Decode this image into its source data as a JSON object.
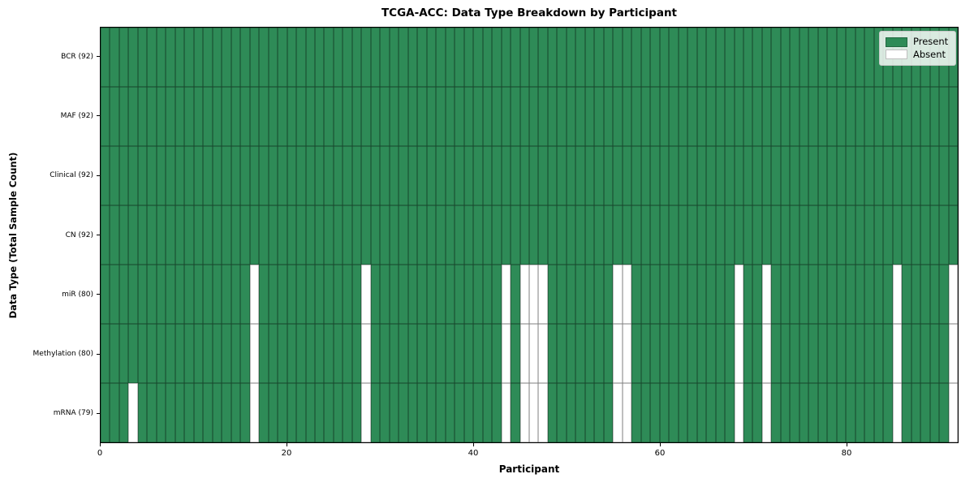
{
  "chart_data": {
    "type": "heatmap",
    "title": "TCGA-ACC: Data Type Breakdown by Participant",
    "xlabel": "Participant",
    "ylabel": "Data Type (Total Sample Count)",
    "x_axis": {
      "range": [
        0,
        92
      ],
      "ticks": [
        0,
        20,
        40,
        60,
        80
      ]
    },
    "n_participants": 92,
    "grid_on": true,
    "colors": {
      "present": "#2e8b57",
      "absent": "#ffffff",
      "cell_grid_line": "rgba(0,0,0,0.5)",
      "spine": "#000000"
    },
    "legend": {
      "position": "upper right",
      "entries": [
        {
          "label": "Present",
          "color": "#2e8b57"
        },
        {
          "label": "Absent",
          "color": "#ffffff"
        }
      ]
    },
    "rows": [
      {
        "label": "BCR (92)",
        "data_type": "BCR",
        "present_count": 92,
        "absent_participants": []
      },
      {
        "label": "MAF (92)",
        "data_type": "MAF",
        "present_count": 92,
        "absent_participants": []
      },
      {
        "label": "Clinical (92)",
        "data_type": "Clinical",
        "present_count": 92,
        "absent_participants": []
      },
      {
        "label": "CN (92)",
        "data_type": "CN",
        "present_count": 92,
        "absent_participants": []
      },
      {
        "label": "miR (80)",
        "data_type": "miR",
        "present_count": 80,
        "absent_participants": [
          16,
          28,
          43,
          45,
          46,
          47,
          55,
          56,
          68,
          71,
          85,
          91
        ]
      },
      {
        "label": "Methylation (80)",
        "data_type": "Methylation",
        "present_count": 80,
        "absent_participants": [
          16,
          28,
          43,
          45,
          46,
          47,
          55,
          56,
          68,
          71,
          85,
          91
        ]
      },
      {
        "label": "mRNA (79)",
        "data_type": "mRNA",
        "present_count": 79,
        "absent_participants": [
          3,
          16,
          28,
          43,
          45,
          46,
          47,
          55,
          56,
          68,
          71,
          85,
          91
        ]
      }
    ]
  }
}
